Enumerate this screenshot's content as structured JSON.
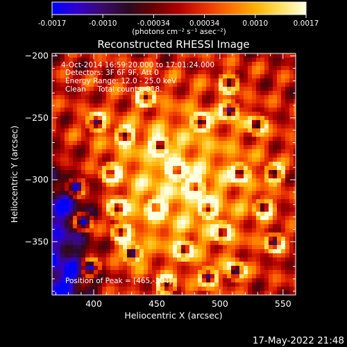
{
  "colorbar": {
    "ticks": [
      "-0.0017",
      "-0.0010",
      "-0.00034",
      "0.00034",
      "0.0010",
      "0.0017"
    ],
    "unit_label": "(photons cm⁻² s⁻¹ asec⁻²)",
    "colors": [
      "#0000ff",
      "#3300cc",
      "#3b0a6a",
      "#2a0a20",
      "#6a0000",
      "#b00000",
      "#e83000",
      "#ff7000",
      "#ffb000",
      "#ffe060",
      "#ffffe0"
    ]
  },
  "chart_data": {
    "type": "heatmap",
    "title": "Reconstructed RHESSI Image",
    "xlabel": "Heliocentric X (arcsec)",
    "ylabel": "Heliocentric Y (arcsec)",
    "xlim": [
      367,
      560
    ],
    "ylim": [
      -393,
      -198
    ],
    "x_ticks": [
      400,
      450,
      500,
      550
    ],
    "y_ticks": [
      -200,
      -250,
      -300,
      -350
    ],
    "annotations": {
      "line1": "4-Oct-2014 16:59:20.000 to 17:01:24.000",
      "line2": "Detectors: 3F 6F 9F, Att 0",
      "line3": "Energy Range: 12.0 - 25.0 keV",
      "line4": "Clean     Total counts: 918.",
      "peak": "Position of Peak = [465,-304]"
    },
    "peak": [
      465,
      -304
    ],
    "vmin": -0.0017,
    "vmax": 0.0017
  },
  "footer": {
    "timestamp": "17-May-2022 21:48"
  }
}
